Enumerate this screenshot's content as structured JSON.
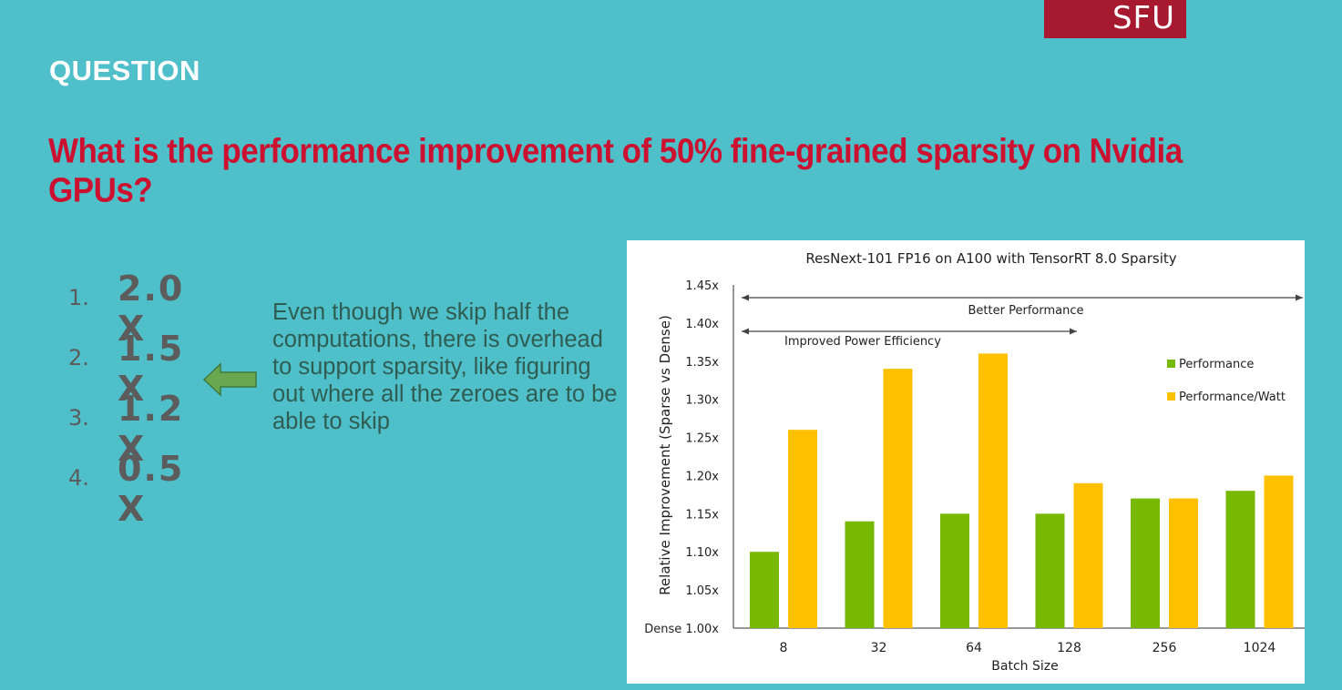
{
  "slide": {
    "logo_text": "SFU",
    "section_label": "QUESTION",
    "question": "What is the performance improvement of 50% fine-grained sparsity on Nvidia GPUs?",
    "options": [
      {
        "number": "1.",
        "value": "2.0 X"
      },
      {
        "number": "2.",
        "value": "1.5 X"
      },
      {
        "number": "3.",
        "value": "1.2 X"
      },
      {
        "number": "4.",
        "value": "0.5 X"
      }
    ],
    "explanation": "Even though we skip half the computations, there is overhead to support sparsity, like figuring out where all the zeroes are to be able to skip",
    "colors": {
      "background": "#4fbfca",
      "logo": "#a6192e",
      "question": "#cc1130",
      "arrow": "#6aa84f"
    }
  },
  "chart_data": {
    "type": "bar",
    "title": "ResNext-101 FP16 on A100 with TensorRT 8.0 Sparsity",
    "xlabel": "Batch Size",
    "ylabel": "Relative Improvement (Sparse vs Dense)",
    "categories": [
      "8",
      "32",
      "64",
      "128",
      "256",
      "1024"
    ],
    "series": [
      {
        "name": "Performance",
        "color": "#76b900",
        "values": [
          1.1,
          1.14,
          1.15,
          1.15,
          1.17,
          1.18
        ]
      },
      {
        "name": "Performance/Watt",
        "color": "#ffc000",
        "values": [
          1.26,
          1.34,
          1.36,
          1.19,
          1.17,
          1.2
        ]
      }
    ],
    "ylim": [
      1.0,
      1.45
    ],
    "ytick_labels": [
      "Dense 1.00x",
      "1.05x",
      "1.10x",
      "1.15x",
      "1.20x",
      "1.25x",
      "1.30x",
      "1.35x",
      "1.40x",
      "1.45x"
    ],
    "legend_position": "right",
    "annotations": [
      "Better Performance",
      "Improved Power Efficiency"
    ],
    "grid": false
  }
}
